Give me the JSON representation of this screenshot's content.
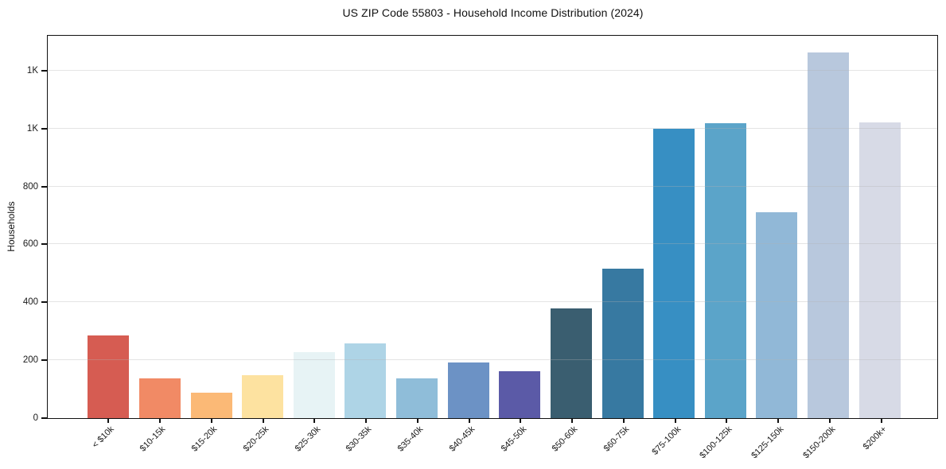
{
  "figure": {
    "title": "US ZIP Code 55803 - Household Income Distribution (2024)",
    "background_color": "#ffffff",
    "axis_color": "#111111",
    "grid_color": "#e9e9e9",
    "text_color": "#1a1a1a"
  },
  "chart_data": {
    "type": "bar",
    "title": "US ZIP Code 55803 - Household Income Distribution (2024)",
    "xlabel": "",
    "ylabel": "Households",
    "ylim": [
      0,
      1326
    ],
    "grid": "horizontal",
    "legend": "none",
    "categories": [
      "< $10k",
      "$10-15k",
      "$15-20k",
      "$20-25k",
      "$25-30k",
      "$30-35k",
      "$35-40k",
      "$40-45k",
      "$45-50k",
      "$50-60k",
      "$60-75k",
      "$75-100k",
      "$100-125k",
      "$125-150k",
      "$150-200k",
      "$200k+"
    ],
    "values": [
      285,
      136,
      89,
      147,
      228,
      257,
      136,
      191,
      161,
      378,
      516,
      998,
      1019,
      710,
      1263,
      1022
    ],
    "bar_colors": [
      "#d65c52",
      "#f18a65",
      "#fbb976",
      "#fde2a0",
      "#e7f3f5",
      "#aed4e6",
      "#8fbdd9",
      "#6c92c5",
      "#5b5aa7",
      "#3a5e70",
      "#3779a1",
      "#378fc3",
      "#5ba4c9",
      "#91b8d7",
      "#b8c8dd",
      "#d7dae6"
    ],
    "yticks": [
      {
        "value": 0,
        "label": "0"
      },
      {
        "value": 200,
        "label": "200"
      },
      {
        "value": 400,
        "label": "400"
      },
      {
        "value": 600,
        "label": "600"
      },
      {
        "value": 800,
        "label": "800"
      },
      {
        "value": 1000,
        "label": "1K"
      },
      {
        "value": 1200,
        "label": "1K"
      }
    ]
  }
}
